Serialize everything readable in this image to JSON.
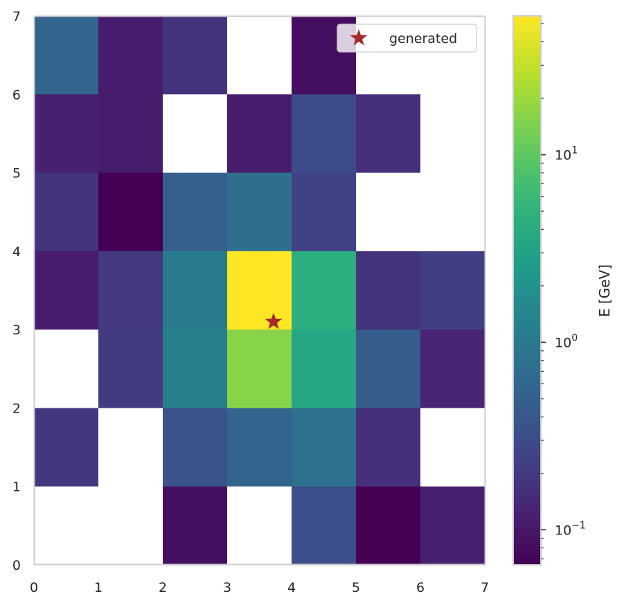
{
  "chart_data": {
    "type": "heatmap",
    "x_range": [
      0,
      7
    ],
    "y_range": [
      0,
      7
    ],
    "x_ticks": [
      "0",
      "1",
      "2",
      "3",
      "4",
      "5",
      "6",
      "7"
    ],
    "y_ticks": [
      "0",
      "1",
      "2",
      "3",
      "4",
      "5",
      "6",
      "7"
    ],
    "grid": false,
    "colormap": "viridis",
    "empty_cell_color": "#ffffff",
    "colorbar": {
      "label": "E [GeV]",
      "scale": "log",
      "range": [
        0.065,
        55
      ],
      "major_ticks": [
        {
          "value": 0.1,
          "base": "10",
          "exp": "−1"
        },
        {
          "value": 1,
          "base": "10",
          "exp": "0"
        },
        {
          "value": 10,
          "base": "10",
          "exp": "1"
        }
      ]
    },
    "cell_values_note_rows_from_top": true,
    "rows": [
      {
        "y": 6,
        "values": [
          0.55,
          0.11,
          0.18,
          null,
          0.085,
          null,
          null
        ]
      },
      {
        "y": 5,
        "values": [
          0.12,
          0.11,
          null,
          0.11,
          0.3,
          0.16,
          null
        ]
      },
      {
        "y": 4,
        "values": [
          0.18,
          0.065,
          0.5,
          0.75,
          0.24,
          null,
          null
        ]
      },
      {
        "y": 3,
        "values": [
          0.11,
          0.2,
          1.05,
          55,
          4.5,
          0.17,
          0.23
        ]
      },
      {
        "y": 2,
        "values": [
          null,
          0.21,
          1.2,
          16,
          3.5,
          0.45,
          0.13
        ]
      },
      {
        "y": 1,
        "values": [
          0.19,
          null,
          0.36,
          0.55,
          0.8,
          0.16,
          null
        ]
      },
      {
        "y": 0,
        "values": [
          null,
          null,
          0.085,
          null,
          0.33,
          0.065,
          0.12
        ]
      }
    ],
    "markers": [
      {
        "name": "generated",
        "x": 3.72,
        "y": 3.1,
        "symbol": "star",
        "color": "#a52a2a"
      }
    ],
    "legend": {
      "position": "top-right",
      "entries": [
        "generated"
      ]
    }
  }
}
